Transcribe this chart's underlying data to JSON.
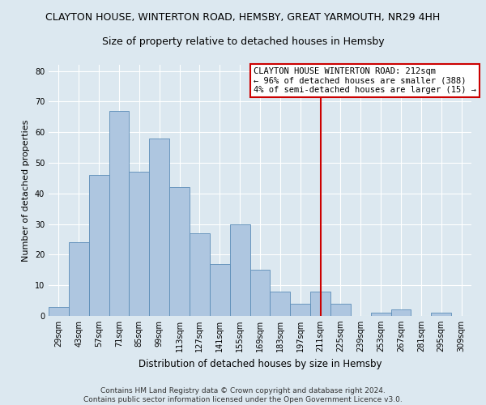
{
  "title": "CLAYTON HOUSE, WINTERTON ROAD, HEMSBY, GREAT YARMOUTH, NR29 4HH",
  "subtitle": "Size of property relative to detached houses in Hemsby",
  "xlabel": "Distribution of detached houses by size in Hemsby",
  "ylabel": "Number of detached properties",
  "bar_color": "#aec6e0",
  "bar_edge_color": "#5b8db8",
  "categories": [
    "29sqm",
    "43sqm",
    "57sqm",
    "71sqm",
    "85sqm",
    "99sqm",
    "113sqm",
    "127sqm",
    "141sqm",
    "155sqm",
    "169sqm",
    "183sqm",
    "197sqm",
    "211sqm",
    "225sqm",
    "239sqm",
    "253sqm",
    "267sqm",
    "281sqm",
    "295sqm",
    "309sqm"
  ],
  "values": [
    3,
    24,
    46,
    67,
    47,
    58,
    42,
    27,
    17,
    30,
    15,
    8,
    4,
    8,
    4,
    0,
    1,
    2,
    0,
    1,
    0
  ],
  "ylim": [
    0,
    82
  ],
  "yticks": [
    0,
    10,
    20,
    30,
    40,
    50,
    60,
    70,
    80
  ],
  "vline_x": 13,
  "vline_color": "#cc0000",
  "annotation_text": "CLAYTON HOUSE WINTERTON ROAD: 212sqm\n← 96% of detached houses are smaller (388)\n4% of semi-detached houses are larger (15) →",
  "footer1": "Contains HM Land Registry data © Crown copyright and database right 2024.",
  "footer2": "Contains public sector information licensed under the Open Government Licence v3.0.",
  "background_color": "#dce8f0",
  "grid_color": "#ffffff",
  "title_fontsize": 9,
  "subtitle_fontsize": 9,
  "xlabel_fontsize": 8.5,
  "ylabel_fontsize": 8,
  "tick_fontsize": 7,
  "footer_fontsize": 6.5,
  "annotation_fontsize": 7.5
}
